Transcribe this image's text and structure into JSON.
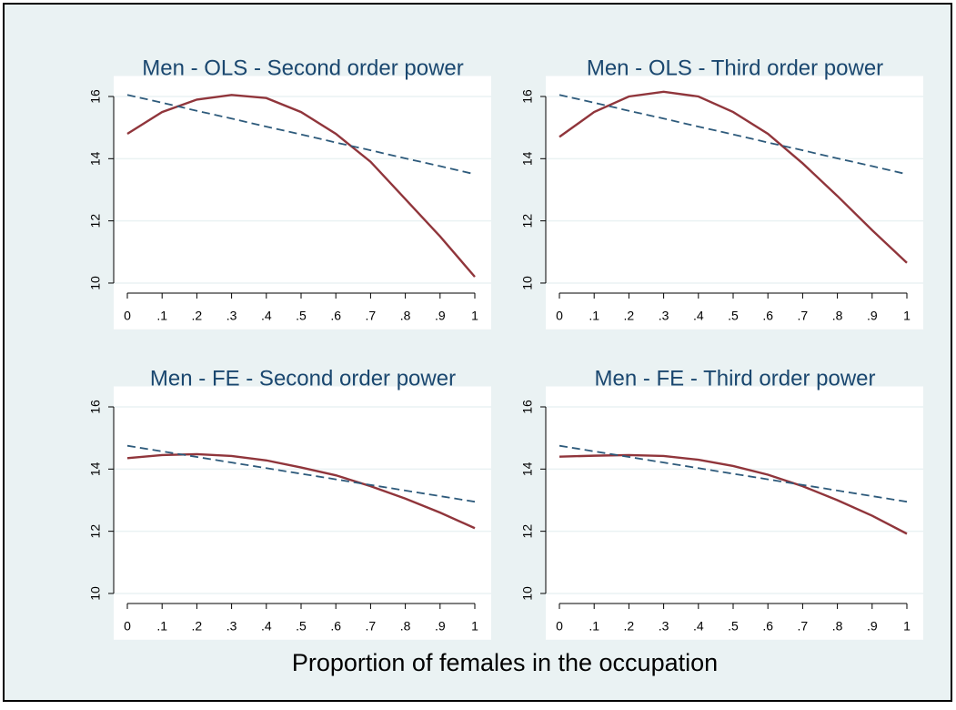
{
  "chart_data": [
    {
      "type": "line",
      "title": "Men - OLS - Second order power",
      "x": [
        0,
        0.1,
        0.2,
        0.3,
        0.4,
        0.5,
        0.6,
        0.7,
        0.8,
        0.9,
        1
      ],
      "series": [
        {
          "color": "#90353b",
          "dash": false,
          "values": [
            14.8,
            15.5,
            15.9,
            16.05,
            15.95,
            15.5,
            14.8,
            13.9,
            12.7,
            11.5,
            10.2
          ]
        },
        {
          "color": "#2d5a7b",
          "dash": true,
          "values": [
            16.05,
            15.8,
            15.54,
            15.29,
            15.03,
            14.78,
            14.52,
            14.27,
            14.01,
            13.76,
            13.5
          ]
        }
      ],
      "xlim": [
        0,
        1
      ],
      "ylim": [
        9.8,
        16.6
      ],
      "xticks": [
        0,
        {
          "value": 0.1,
          "label": ".1"
        },
        {
          "value": 0.2,
          "label": ".2"
        },
        {
          "value": 0.3,
          "label": ".3"
        },
        {
          "value": 0.4,
          "label": ".4"
        },
        {
          "value": 0.5,
          "label": ".5"
        },
        {
          "value": 0.6,
          "label": ".6"
        },
        {
          "value": 0.7,
          "label": ".7"
        },
        {
          "value": 0.8,
          "label": ".8"
        },
        {
          "value": 0.9,
          "label": ".9"
        },
        1
      ],
      "yticks": [
        10,
        12,
        14,
        16
      ],
      "grid": true
    },
    {
      "type": "line",
      "title": "Men - OLS - Third order power",
      "x": [
        0,
        0.1,
        0.2,
        0.3,
        0.4,
        0.5,
        0.6,
        0.7,
        0.8,
        0.9,
        1
      ],
      "series": [
        {
          "color": "#90353b",
          "dash": false,
          "values": [
            14.7,
            15.5,
            16.0,
            16.15,
            16.0,
            15.5,
            14.8,
            13.85,
            12.8,
            11.7,
            10.65
          ]
        },
        {
          "color": "#2d5a7b",
          "dash": true,
          "values": [
            16.05,
            15.8,
            15.54,
            15.29,
            15.03,
            14.78,
            14.52,
            14.27,
            14.01,
            13.76,
            13.5
          ]
        }
      ],
      "xlim": [
        0,
        1
      ],
      "ylim": [
        9.8,
        16.6
      ],
      "xticks": [
        0,
        {
          "value": 0.1,
          "label": ".1"
        },
        {
          "value": 0.2,
          "label": ".2"
        },
        {
          "value": 0.3,
          "label": ".3"
        },
        {
          "value": 0.4,
          "label": ".4"
        },
        {
          "value": 0.5,
          "label": ".5"
        },
        {
          "value": 0.6,
          "label": ".6"
        },
        {
          "value": 0.7,
          "label": ".7"
        },
        {
          "value": 0.8,
          "label": ".8"
        },
        {
          "value": 0.9,
          "label": ".9"
        },
        1
      ],
      "yticks": [
        10,
        12,
        14,
        16
      ],
      "grid": true
    },
    {
      "type": "line",
      "title": "Men - FE - Second order power",
      "x": [
        0,
        0.1,
        0.2,
        0.3,
        0.4,
        0.5,
        0.6,
        0.7,
        0.8,
        0.9,
        1
      ],
      "series": [
        {
          "color": "#90353b",
          "dash": false,
          "values": [
            14.35,
            14.45,
            14.48,
            14.42,
            14.28,
            14.05,
            13.8,
            13.45,
            13.05,
            12.6,
            12.1
          ]
        },
        {
          "color": "#2d5a7b",
          "dash": true,
          "values": [
            14.75,
            14.57,
            14.39,
            14.21,
            14.03,
            13.85,
            13.67,
            13.49,
            13.31,
            13.13,
            12.95
          ]
        }
      ],
      "xlim": [
        0,
        1
      ],
      "ylim": [
        9.8,
        16.6
      ],
      "xticks": [
        0,
        {
          "value": 0.1,
          "label": ".1"
        },
        {
          "value": 0.2,
          "label": ".2"
        },
        {
          "value": 0.3,
          "label": ".3"
        },
        {
          "value": 0.4,
          "label": ".4"
        },
        {
          "value": 0.5,
          "label": ".5"
        },
        {
          "value": 0.6,
          "label": ".6"
        },
        {
          "value": 0.7,
          "label": ".7"
        },
        {
          "value": 0.8,
          "label": ".8"
        },
        {
          "value": 0.9,
          "label": ".9"
        },
        1
      ],
      "yticks": [
        10,
        12,
        14,
        16
      ],
      "grid": true
    },
    {
      "type": "line",
      "title": "Men - FE - Third order power",
      "x": [
        0,
        0.1,
        0.2,
        0.3,
        0.4,
        0.5,
        0.6,
        0.7,
        0.8,
        0.9,
        1
      ],
      "series": [
        {
          "color": "#90353b",
          "dash": false,
          "values": [
            14.4,
            14.43,
            14.45,
            14.42,
            14.3,
            14.1,
            13.82,
            13.45,
            13.0,
            12.5,
            11.92
          ]
        },
        {
          "color": "#2d5a7b",
          "dash": true,
          "values": [
            14.75,
            14.57,
            14.39,
            14.21,
            14.03,
            13.85,
            13.67,
            13.49,
            13.31,
            13.13,
            12.95
          ]
        }
      ],
      "xlim": [
        0,
        1
      ],
      "ylim": [
        9.8,
        16.6
      ],
      "xticks": [
        0,
        {
          "value": 0.1,
          "label": ".1"
        },
        {
          "value": 0.2,
          "label": ".2"
        },
        {
          "value": 0.3,
          "label": ".3"
        },
        {
          "value": 0.4,
          "label": ".4"
        },
        {
          "value": 0.5,
          "label": ".5"
        },
        {
          "value": 0.6,
          "label": ".6"
        },
        {
          "value": 0.7,
          "label": ".7"
        },
        {
          "value": 0.8,
          "label": ".8"
        },
        {
          "value": 0.9,
          "label": ".9"
        },
        1
      ],
      "yticks": [
        10,
        12,
        14,
        16
      ],
      "grid": true
    }
  ],
  "xlabel": "Proportion of females in the occupation"
}
